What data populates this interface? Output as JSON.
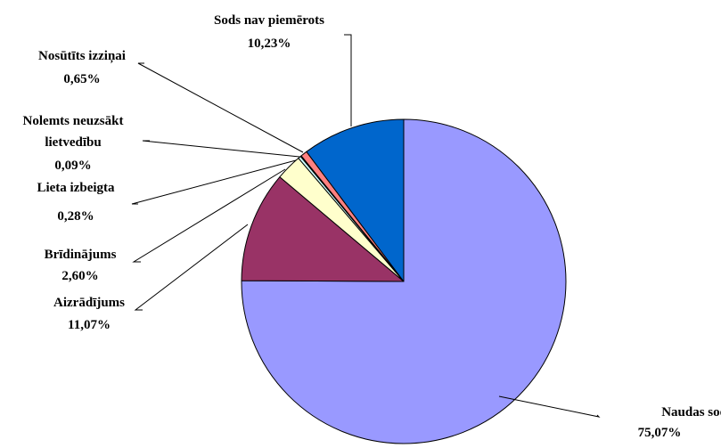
{
  "chart_data": {
    "type": "pie",
    "title": "",
    "start_angle_deg": 0,
    "direction": "clockwise",
    "slices": [
      {
        "name": "Naudas sods",
        "value": 75.07,
        "value_label": "75,07%",
        "color": "#9999FF"
      },
      {
        "name": "Aizrādījums",
        "value": 11.07,
        "value_label": "11,07%",
        "color": "#993366"
      },
      {
        "name": "Brīdinājums",
        "value": 2.6,
        "value_label": "2,60%",
        "color": "#FFFFCC"
      },
      {
        "name": "Lieta izbeigta",
        "value": 0.28,
        "value_label": "0,28%",
        "color": "#CCFFFF"
      },
      {
        "name": "Nolemts neuzsākt lietvedību",
        "value": 0.09,
        "value_label": "0,09%",
        "color": "#660066"
      },
      {
        "name": "Nosūtīts izziņai",
        "value": 0.65,
        "value_label": "0,65%",
        "color": "#FF8080"
      },
      {
        "name": "Sods nav piemērots",
        "value": 10.23,
        "value_label": "10,23%",
        "color": "#0066CC"
      }
    ]
  }
}
